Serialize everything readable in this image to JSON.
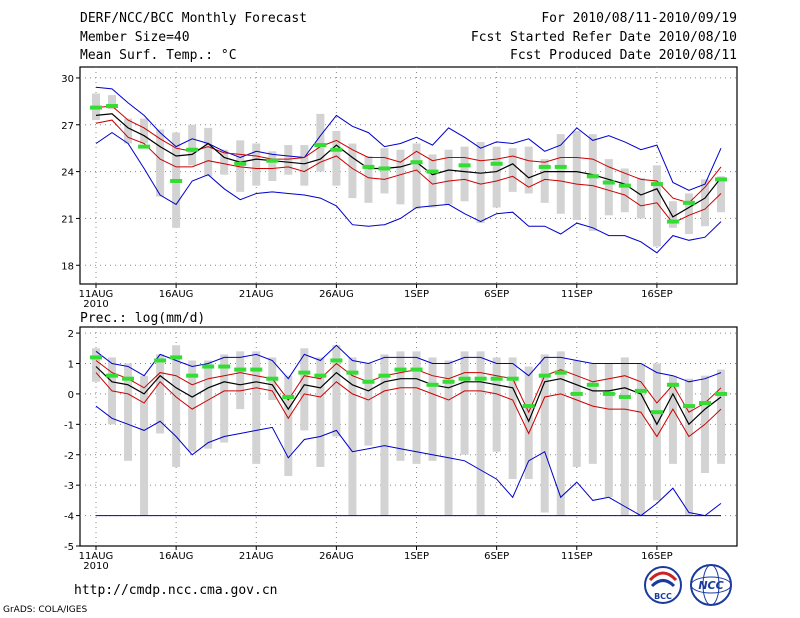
{
  "header": {
    "title": "DERF/NCC/BCC Monthly Forecast",
    "member_size": "Member Size=40",
    "variable": "Mean Surf. Temp.: °C",
    "forecast_period": "For 2010/08/11-2010/09/19",
    "started_refer": "Fcst Started Refer Date 2010/08/10",
    "produced": "Fcst Produced Date 2010/08/11"
  },
  "footer": {
    "url": "http://cmdp.ncc.cma.gov.cn",
    "grads": "GrADS: COLA/IGES",
    "logo_bcc": "BCC",
    "logo_ncc": "NCC"
  },
  "colors": {
    "envelope": "#0000cc",
    "inner": "#cc0000",
    "median": "#000000",
    "member": "#33dd33",
    "box": "#d3d3d3"
  },
  "chart_data": [
    {
      "type": "line",
      "title": "Mean Surf. Temp.: °C",
      "x": [
        "08-11",
        "08-12",
        "08-13",
        "08-14",
        "08-15",
        "08-16",
        "08-17",
        "08-18",
        "08-19",
        "08-20",
        "08-21",
        "08-22",
        "08-23",
        "08-24",
        "08-25",
        "08-26",
        "08-27",
        "08-28",
        "08-29",
        "08-30",
        "08-31",
        "09-01",
        "09-02",
        "09-03",
        "09-04",
        "09-05",
        "09-06",
        "09-07",
        "09-08",
        "09-09",
        "09-10",
        "09-11",
        "09-12",
        "09-13",
        "09-14",
        "09-15",
        "09-16",
        "09-17",
        "09-18",
        "09-19"
      ],
      "xticks": [
        "11AUG",
        "16AUG",
        "21AUG",
        "26AUG",
        "1SEP",
        "6SEP",
        "11SEP",
        "16SEP"
      ],
      "xtick_year": "2010",
      "ylim": [
        16.8,
        30.7
      ],
      "yticks": [
        18,
        21,
        24,
        27,
        30
      ],
      "series": [
        {
          "name": "max",
          "values": [
            29.4,
            29.3,
            28.4,
            27.6,
            26.5,
            25.6,
            26.1,
            25.8,
            25.3,
            24.9,
            25.3,
            25.1,
            25.0,
            24.9,
            26.3,
            27.6,
            26.9,
            26.5,
            25.6,
            25.8,
            26.2,
            25.7,
            26.8,
            26.2,
            25.5,
            25.9,
            25.8,
            26.1,
            25.3,
            25.7,
            26.8,
            26.0,
            26.3,
            25.9,
            25.4,
            25.7,
            23.3,
            22.8,
            23.2,
            25.5
          ]
        },
        {
          "name": "q_high",
          "values": [
            28.1,
            28.2,
            27.3,
            26.8,
            26.1,
            25.5,
            25.3,
            25.6,
            25.2,
            25.1,
            25.0,
            24.8,
            24.8,
            24.9,
            25.6,
            26.0,
            25.4,
            24.9,
            24.9,
            24.6,
            25.3,
            24.7,
            24.9,
            24.9,
            24.7,
            24.8,
            25.0,
            24.7,
            24.6,
            24.9,
            24.9,
            24.8,
            24.3,
            23.9,
            23.5,
            23.4,
            22.3,
            22.0,
            23.0,
            24.3
          ]
        },
        {
          "name": "median",
          "values": [
            27.6,
            27.7,
            26.8,
            26.3,
            25.6,
            25.0,
            25.1,
            25.8,
            24.9,
            24.6,
            24.8,
            24.7,
            24.6,
            24.5,
            24.8,
            25.7,
            24.9,
            24.2,
            24.2,
            24.3,
            24.6,
            23.8,
            24.1,
            24.0,
            23.9,
            24.0,
            24.5,
            23.6,
            24.0,
            24.0,
            24.0,
            23.8,
            23.5,
            23.2,
            22.5,
            22.9,
            21.1,
            21.7,
            22.3,
            23.6
          ]
        },
        {
          "name": "q_low",
          "values": [
            27.1,
            27.3,
            26.2,
            25.8,
            24.8,
            24.3,
            24.3,
            24.7,
            24.5,
            24.3,
            24.2,
            24.2,
            24.3,
            24.0,
            24.6,
            25.0,
            24.2,
            23.6,
            23.5,
            23.8,
            24.1,
            23.2,
            23.4,
            23.5,
            23.2,
            23.4,
            23.7,
            23.0,
            23.5,
            23.4,
            23.2,
            23.1,
            22.8,
            22.5,
            21.8,
            22.0,
            20.7,
            21.2,
            21.6,
            22.6
          ]
        },
        {
          "name": "min",
          "values": [
            25.8,
            26.5,
            25.8,
            24.2,
            22.5,
            21.9,
            23.4,
            23.8,
            22.9,
            22.2,
            22.6,
            22.7,
            22.6,
            22.5,
            22.3,
            21.8,
            20.6,
            20.5,
            20.6,
            21.0,
            21.7,
            21.8,
            21.9,
            21.3,
            20.8,
            21.3,
            21.4,
            20.5,
            20.5,
            20.0,
            20.7,
            20.4,
            19.9,
            19.9,
            19.5,
            18.8,
            19.9,
            19.6,
            19.8,
            20.8
          ]
        },
        {
          "name": "members",
          "values": [
            28.1,
            28.2,
            null,
            25.6,
            null,
            23.4,
            25.4,
            null,
            null,
            24.5,
            null,
            24.7,
            null,
            null,
            25.7,
            25.4,
            null,
            24.3,
            24.2,
            null,
            24.6,
            24.0,
            null,
            24.4,
            null,
            24.5,
            null,
            null,
            24.3,
            24.3,
            null,
            23.7,
            23.3,
            23.1,
            null,
            23.2,
            20.8,
            22.0,
            null,
            23.5
          ]
        }
      ],
      "boxes_low": [
        27.3,
        28.0,
        25.8,
        25.8,
        22.4,
        20.4,
        24.4,
        23.7,
        23.8,
        22.7,
        23.1,
        23.4,
        23.8,
        23.1,
        24.0,
        23.1,
        22.3,
        22.0,
        22.6,
        21.9,
        21.6,
        21.7,
        21.9,
        22.1,
        20.7,
        21.7,
        22.7,
        22.6,
        22.0,
        21.3,
        20.9,
        20.2,
        21.2,
        21.4,
        21.0,
        19.2,
        20.4,
        20.0,
        20.5,
        21.4
      ],
      "boxes_high": [
        29.0,
        28.9,
        27.4,
        27.4,
        26.7,
        26.5,
        27.0,
        26.8,
        25.4,
        26.0,
        25.8,
        25.3,
        25.7,
        25.7,
        27.7,
        26.6,
        25.8,
        25.0,
        25.5,
        25.4,
        25.8,
        25.1,
        25.4,
        25.6,
        25.9,
        25.6,
        25.5,
        25.6,
        24.8,
        26.4,
        26.6,
        26.4,
        24.8,
        24.2,
        23.6,
        24.4,
        22.1,
        22.6,
        23.5,
        23.7
      ]
    },
    {
      "type": "line",
      "title": "Prec.: log(mm/d)",
      "x": [
        "08-11",
        "08-12",
        "08-13",
        "08-14",
        "08-15",
        "08-16",
        "08-17",
        "08-18",
        "08-19",
        "08-20",
        "08-21",
        "08-22",
        "08-23",
        "08-24",
        "08-25",
        "08-26",
        "08-27",
        "08-28",
        "08-29",
        "08-30",
        "08-31",
        "09-01",
        "09-02",
        "09-03",
        "09-04",
        "09-05",
        "09-06",
        "09-07",
        "09-08",
        "09-09",
        "09-10",
        "09-11",
        "09-12",
        "09-13",
        "09-14",
        "09-15",
        "09-16",
        "09-17",
        "09-18",
        "09-19"
      ],
      "xticks": [
        "11AUG",
        "16AUG",
        "21AUG",
        "26AUG",
        "1SEP",
        "6SEP",
        "11SEP",
        "16SEP"
      ],
      "xtick_year": "2010",
      "ylim": [
        -5,
        2.2
      ],
      "yticks": [
        -5,
        -4,
        -3,
        -2,
        -1,
        0,
        1,
        2
      ],
      "series": [
        {
          "name": "max",
          "values": [
            1.4,
            1.0,
            0.9,
            0.6,
            1.3,
            1.1,
            0.9,
            1.0,
            1.2,
            1.2,
            1.3,
            1.1,
            0.5,
            1.3,
            1.1,
            1.6,
            1.1,
            1.0,
            1.2,
            1.2,
            1.2,
            1.0,
            1.0,
            1.2,
            1.2,
            1.0,
            1.0,
            0.6,
            1.2,
            1.2,
            1.1,
            1.0,
            1.0,
            1.0,
            1.0,
            0.7,
            0.6,
            0.4,
            0.5,
            0.7
          ]
        },
        {
          "name": "q_high",
          "values": [
            1.1,
            0.7,
            0.5,
            0.2,
            0.7,
            0.6,
            0.3,
            0.5,
            0.6,
            0.7,
            0.6,
            0.5,
            -0.2,
            0.6,
            0.5,
            1.0,
            0.6,
            0.4,
            0.6,
            0.7,
            0.8,
            0.6,
            0.5,
            0.7,
            0.7,
            0.6,
            0.5,
            -0.6,
            0.6,
            0.8,
            0.6,
            0.4,
            0.5,
            0.6,
            0.4,
            -0.3,
            0.3,
            -0.6,
            -0.3,
            0.2
          ]
        },
        {
          "name": "median",
          "values": [
            0.9,
            0.4,
            0.3,
            0.0,
            0.6,
            0.2,
            -0.1,
            0.2,
            0.4,
            0.3,
            0.4,
            0.3,
            -0.5,
            0.3,
            0.2,
            0.7,
            0.3,
            0.1,
            0.4,
            0.5,
            0.5,
            0.3,
            0.2,
            0.4,
            0.4,
            0.3,
            0.2,
            -0.9,
            0.4,
            0.5,
            0.3,
            0.1,
            0.1,
            0.2,
            0.0,
            -1.0,
            0.0,
            -1.0,
            -0.5,
            -0.1
          ]
        },
        {
          "name": "q_low",
          "values": [
            0.7,
            0.1,
            0.0,
            -0.3,
            0.4,
            -0.1,
            -0.5,
            -0.2,
            0.1,
            0.1,
            0.2,
            0.1,
            -0.8,
            0.0,
            -0.1,
            0.4,
            0.0,
            -0.2,
            0.1,
            0.2,
            0.2,
            0.0,
            -0.2,
            0.1,
            0.1,
            0.0,
            -0.2,
            -1.3,
            -0.1,
            0.0,
            -0.2,
            -0.4,
            -0.5,
            -0.5,
            -0.6,
            -1.4,
            -0.5,
            -1.4,
            -1.0,
            -0.5
          ]
        },
        {
          "name": "min",
          "values": [
            -0.4,
            -0.8,
            -1.0,
            -1.2,
            -0.9,
            -1.4,
            -2.0,
            -1.6,
            -1.4,
            -1.3,
            -1.2,
            -1.1,
            -2.1,
            -1.5,
            -1.4,
            -1.2,
            -1.9,
            -1.8,
            -1.7,
            -1.8,
            -1.9,
            -2.0,
            -2.1,
            -2.2,
            -2.5,
            -2.8,
            -3.4,
            -2.2,
            -1.9,
            -3.4,
            -2.9,
            -3.5,
            -3.4,
            -3.7,
            -4.0,
            -3.6,
            -3.1,
            -3.9,
            -4.0,
            -3.6
          ]
        },
        {
          "name": "floor",
          "values": [
            -4,
            -4,
            -4,
            -4,
            -4,
            -4,
            -4,
            -4,
            -4,
            -4,
            -4,
            -4,
            -4,
            -4,
            -4,
            -4,
            -4,
            -4,
            -4,
            -4,
            -4,
            -4,
            -4,
            -4,
            -4,
            -4,
            -4,
            -4,
            -4,
            -4,
            -4,
            -4,
            -4,
            -4,
            -4,
            -4,
            -4,
            -4,
            -4,
            -4
          ]
        },
        {
          "name": "members",
          "values": [
            1.2,
            0.6,
            0.5,
            null,
            1.1,
            1.2,
            0.6,
            0.9,
            0.9,
            0.8,
            0.8,
            0.5,
            -0.1,
            0.7,
            0.6,
            1.1,
            0.7,
            0.4,
            0.6,
            0.8,
            0.8,
            0.3,
            0.4,
            0.5,
            0.5,
            0.5,
            0.5,
            -0.4,
            0.6,
            0.7,
            0.0,
            0.3,
            0.0,
            -0.1,
            0.1,
            -0.6,
            0.3,
            -0.4,
            -0.3,
            0.0
          ]
        }
      ],
      "boxes_low": [
        0.4,
        -1.0,
        -2.2,
        -4.0,
        -1.3,
        -2.4,
        -1.9,
        -1.8,
        -1.6,
        -0.5,
        -2.3,
        -0.2,
        -2.7,
        -1.2,
        -2.4,
        -1.4,
        -4.0,
        -1.7,
        -4.0,
        -2.2,
        -2.3,
        -2.2,
        -4.0,
        -2.0,
        -4.0,
        -1.9,
        -2.8,
        -2.8,
        -3.9,
        -4.0,
        -2.4,
        -2.3,
        -3.4,
        -4.0,
        -4.0,
        -3.5,
        -2.3,
        -4.0,
        -2.6,
        -2.3
      ],
      "boxes_high": [
        1.5,
        1.2,
        1.0,
        0.6,
        1.3,
        1.6,
        1.1,
        1.1,
        1.3,
        1.4,
        1.4,
        1.2,
        0.6,
        1.5,
        1.2,
        1.6,
        1.2,
        1.0,
        1.3,
        1.4,
        1.4,
        1.2,
        1.1,
        1.4,
        1.4,
        1.2,
        1.2,
        0.9,
        1.3,
        1.4,
        1.1,
        1.0,
        1.0,
        1.2,
        1.0,
        1.0,
        0.6,
        0.5,
        0.6,
        0.8
      ]
    }
  ]
}
